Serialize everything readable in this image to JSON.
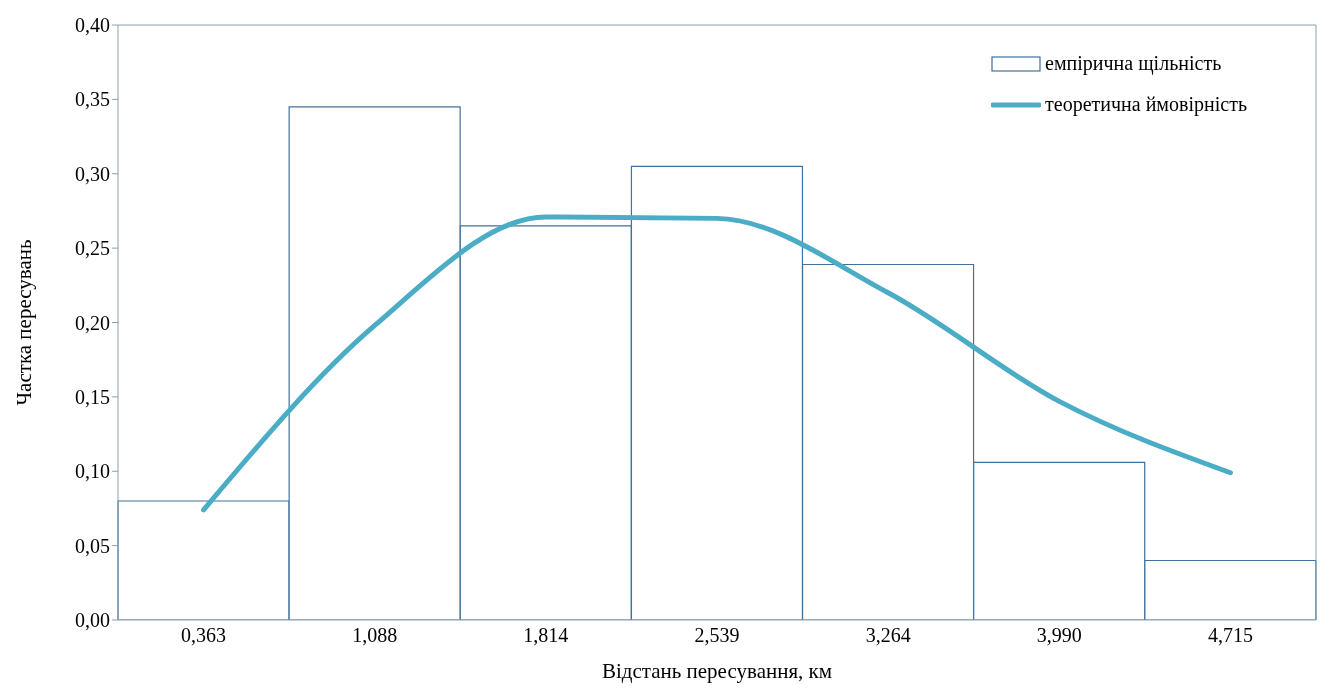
{
  "chart_data": {
    "type": "bar",
    "xlabel": "Відстань пересування, км",
    "ylabel": "Частка пересувань",
    "categories": [
      "0,363",
      "1,088",
      "1,814",
      "2,539",
      "3,264",
      "3,990",
      "4,715"
    ],
    "series": [
      {
        "name": "емпірична щільність",
        "color": "#41719c",
        "values": [
          0.08,
          0.345,
          0.265,
          0.305,
          0.239,
          0.106,
          0.04
        ]
      },
      {
        "name": "теоретична ймовірність",
        "type": "line",
        "color": "#4bacc6",
        "values": [
          0.074,
          0.198,
          0.271,
          0.27,
          0.22,
          0.147,
          0.099
        ]
      }
    ],
    "ylim": [
      0,
      0.4
    ],
    "yticks": [
      {
        "value": 0,
        "label": "0,00"
      },
      {
        "value": 0.05,
        "label": "0,05"
      },
      {
        "value": 0.1,
        "label": "0,10"
      },
      {
        "value": 0.15,
        "label": "0,15"
      },
      {
        "value": 0.2,
        "label": "0,20"
      },
      {
        "value": 0.25,
        "label": "0,25"
      },
      {
        "value": 0.3,
        "label": "0,30"
      },
      {
        "value": 0.35,
        "label": "0,35"
      },
      {
        "value": 0.4,
        "label": "0,40"
      }
    ],
    "grid": false,
    "legend": "top right",
    "marker": "none"
  }
}
